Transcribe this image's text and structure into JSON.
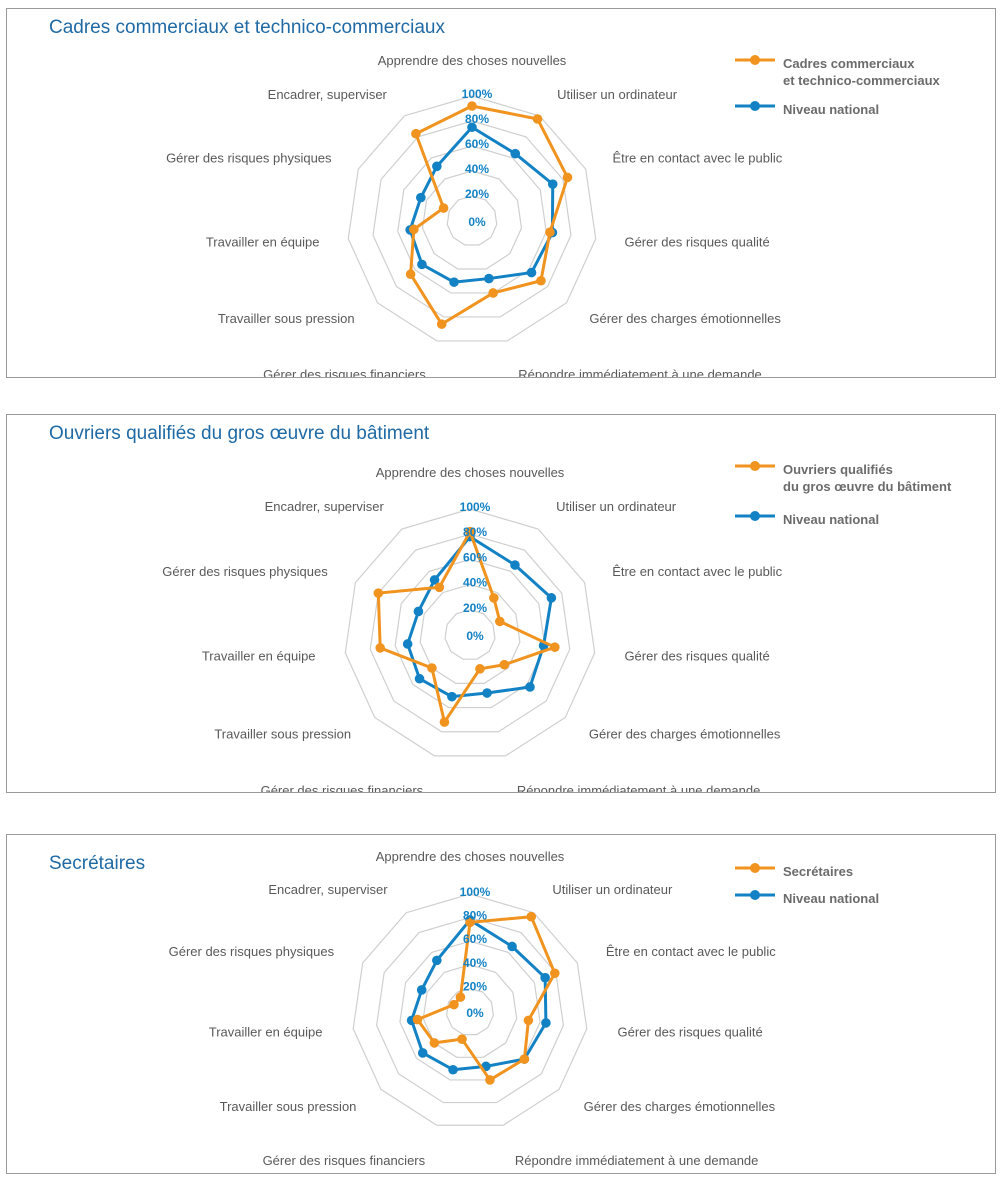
{
  "colors": {
    "primary": "#f0931f",
    "national": "#1382c5",
    "grid": "#cfcfcf",
    "tick": "#1382c5",
    "axis_label": "#595959",
    "title": "#1f6aa5"
  },
  "chart_data": [
    {
      "type": "radar",
      "title": "Cadres commerciaux et technico-commerciaux",
      "axes": [
        "Apprendre des choses nouvelles",
        "Utiliser un ordinateur",
        "Être en contact avec le public",
        "Gérer des risques qualité",
        "Gérer des charges émotionnelles",
        "Répondre immédiatement à une demande",
        "Gérer des risques financiers",
        "Travailler sous pression",
        "Travailler en équipe",
        "Gérer des risques physiques",
        "Encadrer, superviser"
      ],
      "ticks": [
        "0%",
        "20%",
        "40%",
        "60%",
        "80%",
        "100%"
      ],
      "range": [
        0,
        100
      ],
      "series": [
        {
          "name": "Cadres commerciaux\net technico-commerciaux",
          "values": [
            92,
            97,
            84,
            63,
            73,
            60,
            86,
            65,
            47,
            25,
            83
          ]
        },
        {
          "name": "Niveau national",
          "values": [
            75,
            64,
            71,
            65,
            63,
            48,
            51,
            53,
            50,
            45,
            52
          ]
        }
      ]
    },
    {
      "type": "radar",
      "title": "Ouvriers qualifiés du gros œuvre du bâtiment",
      "axes": [
        "Apprendre des choses nouvelles",
        "Utiliser un ordinateur",
        "Être en contact avec le public",
        "Gérer des risques qualité",
        "Gérer des charges émotionnelles",
        "Répondre immédiatement à une demande",
        "Gérer des risques financiers",
        "Travailler sous pression",
        "Travailler en équipe",
        "Gérer des risques physiques",
        "Encadrer, superviser"
      ],
      "ticks": [
        "0%",
        "20%",
        "40%",
        "60%",
        "80%",
        "100%"
      ],
      "range": [
        0,
        100
      ],
      "series": [
        {
          "name": "Ouvriers qualifiés\ndu gros œuvre du bâtiment",
          "values": [
            82,
            35,
            26,
            68,
            36,
            28,
            72,
            40,
            72,
            80,
            45
          ]
        },
        {
          "name": "Niveau national",
          "values": [
            78,
            66,
            71,
            59,
            63,
            48,
            51,
            53,
            50,
            45,
            52
          ]
        }
      ]
    },
    {
      "type": "radar",
      "title": "Secrétaires",
      "axes": [
        "Apprendre des choses nouvelles",
        "Utiliser un ordinateur",
        "Être en contact avec le public",
        "Gérer des risques qualité",
        "Gérer des charges émotionnelles",
        "Répondre immédiatement à une demande",
        "Gérer des risques financiers",
        "Travailler sous pression",
        "Travailler en équipe",
        "Gérer des risques physiques",
        "Encadrer, superviser"
      ],
      "ticks": [
        "0%",
        "20%",
        "40%",
        "60%",
        "80%",
        "100%"
      ],
      "range": [
        0,
        100
      ],
      "series": [
        {
          "name": "Secrétaires",
          "values": [
            76,
            96,
            79,
            50,
            61,
            60,
            24,
            40,
            45,
            15,
            15
          ]
        },
        {
          "name": "Niveau national",
          "values": [
            78,
            66,
            70,
            65,
            61,
            48,
            51,
            53,
            50,
            45,
            52
          ]
        }
      ]
    }
  ]
}
